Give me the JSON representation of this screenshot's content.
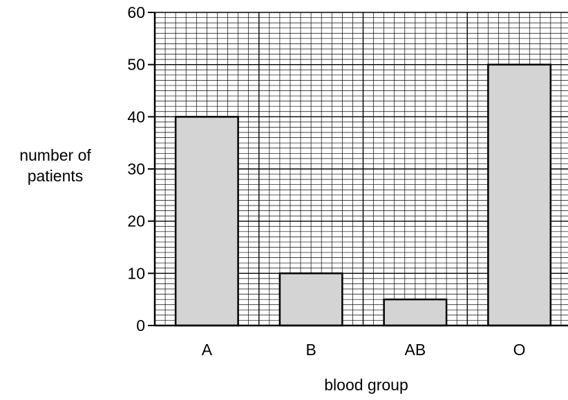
{
  "chart_data": {
    "type": "bar",
    "categories": [
      "A",
      "B",
      "AB",
      "O"
    ],
    "values": [
      40,
      10,
      5,
      50
    ],
    "xlabel": "blood group",
    "ylabel_lines": [
      "number of",
      "patients"
    ],
    "ylim": [
      0,
      60
    ],
    "yticks": [
      "0",
      "10",
      "20",
      "30",
      "40",
      "50",
      "60"
    ],
    "grid": true,
    "bar_color": "#d4d4d4"
  }
}
